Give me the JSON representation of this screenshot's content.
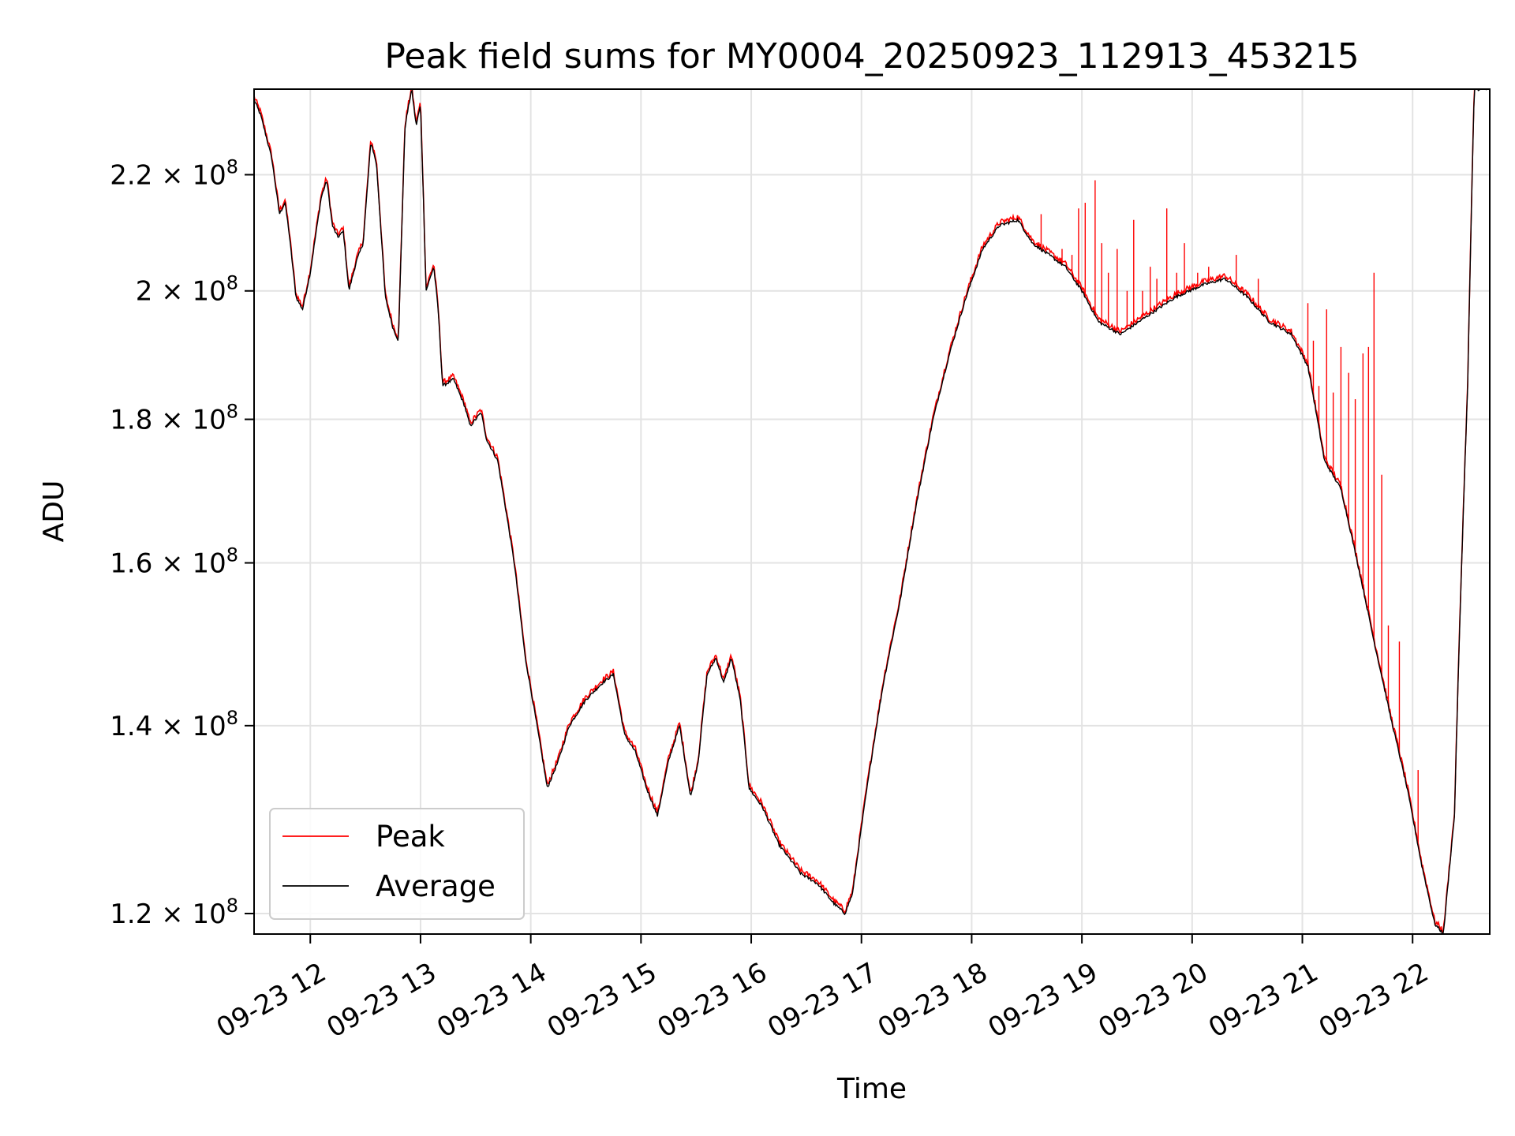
{
  "chart_data": {
    "type": "line",
    "title": "Peak field sums for MY0004_20250923_112913_453215",
    "xlabel": "Time",
    "ylabel": "ADU",
    "y_scale": "log",
    "grid": true,
    "legend_position": "lower-left",
    "xlim_hours": [
      11.49,
      22.7
    ],
    "ylim": [
      118000000,
      236000000
    ],
    "x_ticks": [
      {
        "hour": 12,
        "label": "09-23 12"
      },
      {
        "hour": 13,
        "label": "09-23 13"
      },
      {
        "hour": 14,
        "label": "09-23 14"
      },
      {
        "hour": 15,
        "label": "09-23 15"
      },
      {
        "hour": 16,
        "label": "09-23 16"
      },
      {
        "hour": 17,
        "label": "09-23 17"
      },
      {
        "hour": 18,
        "label": "09-23 18"
      },
      {
        "hour": 19,
        "label": "09-23 19"
      },
      {
        "hour": 20,
        "label": "09-23 20"
      },
      {
        "hour": 21,
        "label": "09-23 21"
      },
      {
        "hour": 22,
        "label": "09-23 22"
      }
    ],
    "y_ticks": [
      {
        "value": 120000000,
        "mantissa": "1.2",
        "exp": "8"
      },
      {
        "value": 140000000,
        "mantissa": "1.4",
        "exp": "8"
      },
      {
        "value": 160000000,
        "mantissa": "1.6",
        "exp": "8"
      },
      {
        "value": 180000000,
        "mantissa": "1.8",
        "exp": "8"
      },
      {
        "value": 200000000,
        "mantissa": "2",
        "exp": "8"
      },
      {
        "value": 220000000,
        "mantissa": "2.2",
        "exp": "8"
      }
    ],
    "series": [
      {
        "name": "Peak",
        "color": "#ff0000"
      },
      {
        "name": "Average",
        "color": "#000000"
      }
    ],
    "average_points": [
      [
        11.49,
        234
      ],
      [
        11.55,
        231
      ],
      [
        11.65,
        223
      ],
      [
        11.72,
        213
      ],
      [
        11.77,
        215
      ],
      [
        11.8,
        211
      ],
      [
        11.87,
        199
      ],
      [
        11.93,
        197
      ],
      [
        12.0,
        203
      ],
      [
        12.1,
        216
      ],
      [
        12.15,
        219
      ],
      [
        12.2,
        211
      ],
      [
        12.25,
        209
      ],
      [
        12.3,
        210
      ],
      [
        12.35,
        200
      ],
      [
        12.42,
        205
      ],
      [
        12.48,
        208
      ],
      [
        12.55,
        226
      ],
      [
        12.6,
        222
      ],
      [
        12.68,
        199
      ],
      [
        12.75,
        194
      ],
      [
        12.8,
        192
      ],
      [
        12.86,
        229
      ],
      [
        12.92,
        236
      ],
      [
        12.96,
        229
      ],
      [
        13.0,
        233
      ],
      [
        13.05,
        200
      ],
      [
        13.12,
        204
      ],
      [
        13.16,
        197
      ],
      [
        13.2,
        185
      ],
      [
        13.3,
        186
      ],
      [
        13.4,
        182
      ],
      [
        13.45,
        179
      ],
      [
        13.55,
        181
      ],
      [
        13.6,
        177
      ],
      [
        13.7,
        174
      ],
      [
        13.85,
        160
      ],
      [
        13.95,
        148
      ],
      [
        14.03,
        142
      ],
      [
        14.15,
        133
      ],
      [
        14.25,
        136
      ],
      [
        14.35,
        140
      ],
      [
        14.5,
        143
      ],
      [
        14.65,
        145
      ],
      [
        14.75,
        146
      ],
      [
        14.85,
        139
      ],
      [
        14.95,
        137
      ],
      [
        15.05,
        133
      ],
      [
        15.15,
        130
      ],
      [
        15.25,
        136
      ],
      [
        15.35,
        140
      ],
      [
        15.45,
        132
      ],
      [
        15.52,
        136
      ],
      [
        15.6,
        146
      ],
      [
        15.68,
        148
      ],
      [
        15.75,
        145
      ],
      [
        15.82,
        148
      ],
      [
        15.9,
        143
      ],
      [
        15.98,
        133
      ],
      [
        16.1,
        131
      ],
      [
        16.25,
        127
      ],
      [
        16.45,
        124
      ],
      [
        16.6,
        123
      ],
      [
        16.75,
        121
      ],
      [
        16.85,
        120
      ],
      [
        16.92,
        122
      ],
      [
        17.05,
        133
      ],
      [
        17.2,
        145
      ],
      [
        17.35,
        155
      ],
      [
        17.5,
        168
      ],
      [
        17.65,
        180
      ],
      [
        17.8,
        190
      ],
      [
        17.95,
        199
      ],
      [
        18.1,
        207
      ],
      [
        18.25,
        211
      ],
      [
        18.42,
        212
      ],
      [
        18.55,
        208
      ],
      [
        18.7,
        206
      ],
      [
        18.85,
        204
      ],
      [
        19.0,
        200
      ],
      [
        19.15,
        195
      ],
      [
        19.35,
        193
      ],
      [
        19.6,
        196
      ],
      [
        19.85,
        199
      ],
      [
        20.1,
        201
      ],
      [
        20.3,
        202
      ],
      [
        20.5,
        199
      ],
      [
        20.7,
        195
      ],
      [
        20.9,
        193
      ],
      [
        21.05,
        188
      ],
      [
        21.2,
        174
      ],
      [
        21.35,
        170
      ],
      [
        21.5,
        160
      ],
      [
        21.65,
        150
      ],
      [
        21.8,
        141
      ],
      [
        21.95,
        133
      ],
      [
        22.08,
        125
      ],
      [
        22.2,
        119
      ],
      [
        22.28,
        118
      ],
      [
        22.38,
        130
      ],
      [
        22.5,
        185
      ],
      [
        22.56,
        236
      ]
    ],
    "peak_spikes": [
      [
        18.63,
        213
      ],
      [
        18.82,
        207
      ],
      [
        18.91,
        206
      ],
      [
        18.97,
        214
      ],
      [
        19.03,
        215
      ],
      [
        19.12,
        219
      ],
      [
        19.18,
        208
      ],
      [
        19.24,
        203
      ],
      [
        19.32,
        207
      ],
      [
        19.41,
        200
      ],
      [
        19.47,
        212
      ],
      [
        19.55,
        200
      ],
      [
        19.62,
        204
      ],
      [
        19.68,
        202
      ],
      [
        19.77,
        214
      ],
      [
        19.86,
        203
      ],
      [
        19.93,
        208
      ],
      [
        20.05,
        203
      ],
      [
        20.15,
        204
      ],
      [
        20.4,
        206
      ],
      [
        20.6,
        202
      ],
      [
        21.05,
        198
      ],
      [
        21.1,
        192
      ],
      [
        21.15,
        185
      ],
      [
        21.22,
        197
      ],
      [
        21.28,
        184
      ],
      [
        21.35,
        191
      ],
      [
        21.42,
        187
      ],
      [
        21.48,
        183
      ],
      [
        21.55,
        190
      ],
      [
        21.6,
        191
      ],
      [
        21.65,
        203
      ],
      [
        21.72,
        172
      ],
      [
        21.78,
        152
      ],
      [
        21.88,
        150
      ],
      [
        22.05,
        135
      ]
    ]
  }
}
